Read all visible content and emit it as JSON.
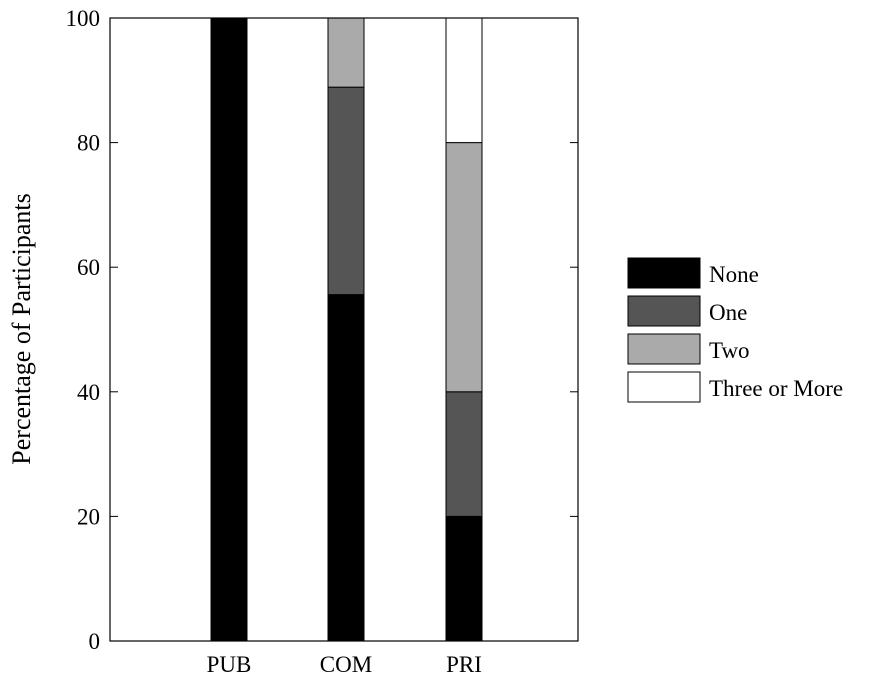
{
  "chart_data": {
    "type": "bar",
    "stacked": true,
    "title": "",
    "xlabel": "",
    "ylabel": "Percentage of Participants",
    "ylim": [
      0,
      100
    ],
    "yticks": [
      0,
      20,
      40,
      60,
      80,
      100
    ],
    "categories": [
      "PUB",
      "COM",
      "PRI"
    ],
    "series": [
      {
        "name": "None",
        "color": "#000000",
        "values": [
          100,
          55.6,
          20
        ]
      },
      {
        "name": "One",
        "color": "#555555",
        "values": [
          0,
          33.3,
          20
        ]
      },
      {
        "name": "Two",
        "color": "#aaaaaa",
        "values": [
          0,
          11.1,
          40
        ]
      },
      {
        "name": "Three or More",
        "color": "#ffffff",
        "values": [
          0,
          0,
          20
        ]
      }
    ],
    "legend_position": "right",
    "grid": false
  }
}
